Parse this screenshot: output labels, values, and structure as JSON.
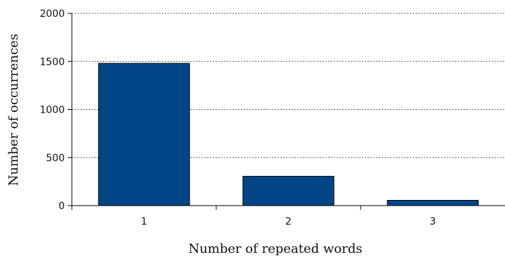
{
  "chart_data": {
    "type": "bar",
    "categories": [
      "1",
      "2",
      "3"
    ],
    "values": [
      1480,
      305,
      55
    ],
    "xlabel": "Number of repeated words",
    "ylabel": "Number of occurrences",
    "ylim": [
      0,
      2000
    ],
    "yticks": [
      0,
      500,
      1000,
      1500,
      2000
    ],
    "grid": "horizontal dotted",
    "colors": {
      "bar": "#004586",
      "bar_edge": "#000000",
      "grid": "#555555"
    }
  }
}
